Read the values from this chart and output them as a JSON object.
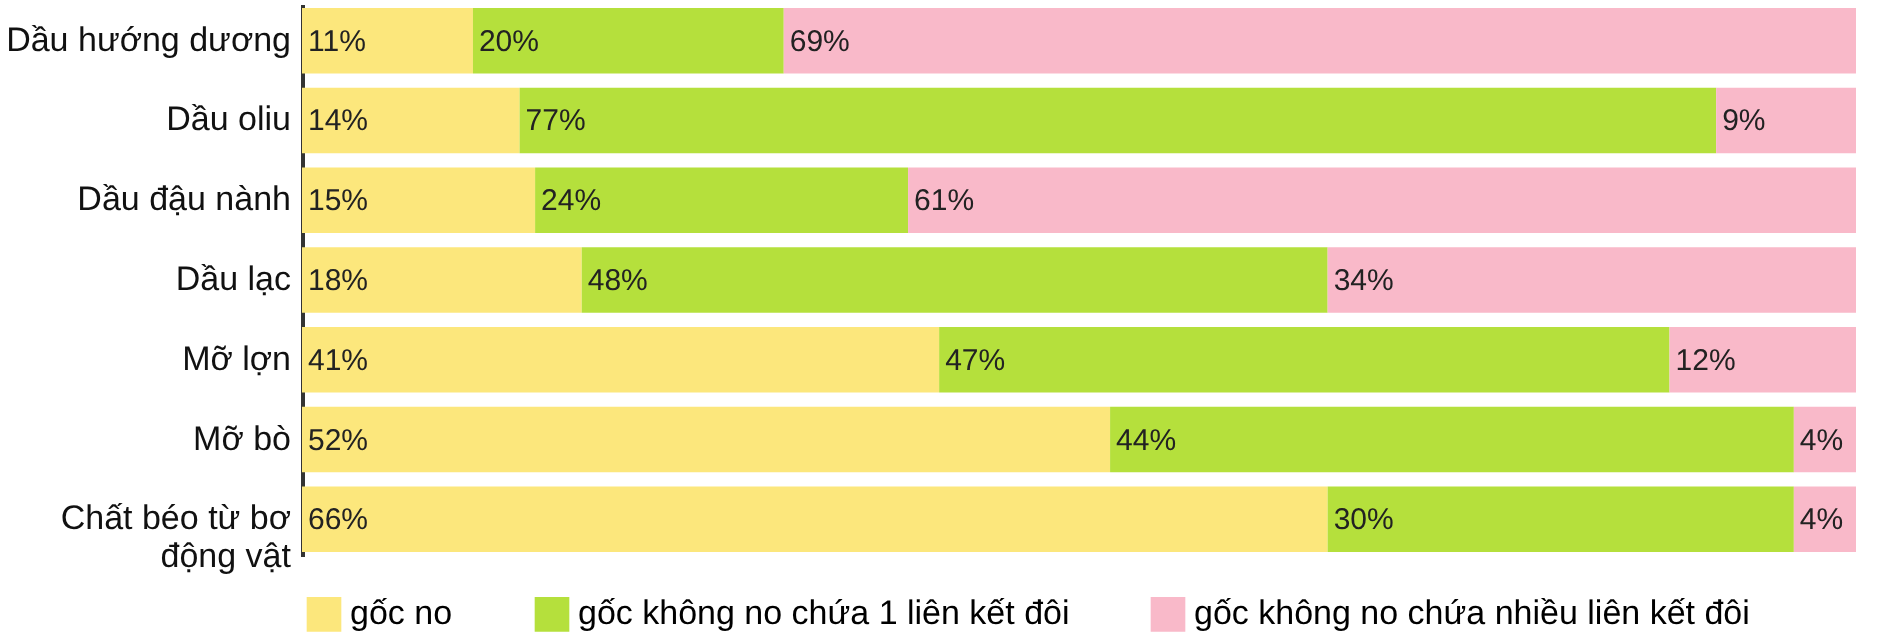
{
  "chart_data": {
    "type": "bar",
    "orientation": "horizontal",
    "stacked": true,
    "legend": "bottom",
    "grid": false,
    "categories": [
      "Dầu hướng dương",
      "Dầu oliu",
      "Dầu đậu nành",
      "Dầu lạc",
      "Mỡ lợn",
      "Mỡ bò",
      "Chất béo từ bơ động vật"
    ],
    "series": [
      {
        "name": "gốc no",
        "color": "#fce77c",
        "values": [
          11,
          14,
          15,
          18,
          41,
          52,
          66
        ],
        "value_labels": [
          "11%",
          "14%",
          "15%",
          "18%",
          "41%",
          "52%",
          "66%"
        ]
      },
      {
        "name": "gốc không no chứa 1 liên kết đôi",
        "color": "#b5e03c",
        "values": [
          20,
          77,
          24,
          48,
          47,
          44,
          30
        ],
        "value_labels": [
          "20%",
          "77%",
          "24%",
          "48%",
          "47%",
          "44%",
          "30%"
        ]
      },
      {
        "name": "gốc không no chứa nhiều liên kết đôi",
        "color": "#f9b9c9",
        "values": [
          69,
          9,
          61,
          34,
          12,
          4,
          4
        ],
        "value_labels": [
          "69%",
          "9%",
          "61%",
          "34%",
          "12%",
          "4%",
          "4%"
        ]
      }
    ]
  }
}
